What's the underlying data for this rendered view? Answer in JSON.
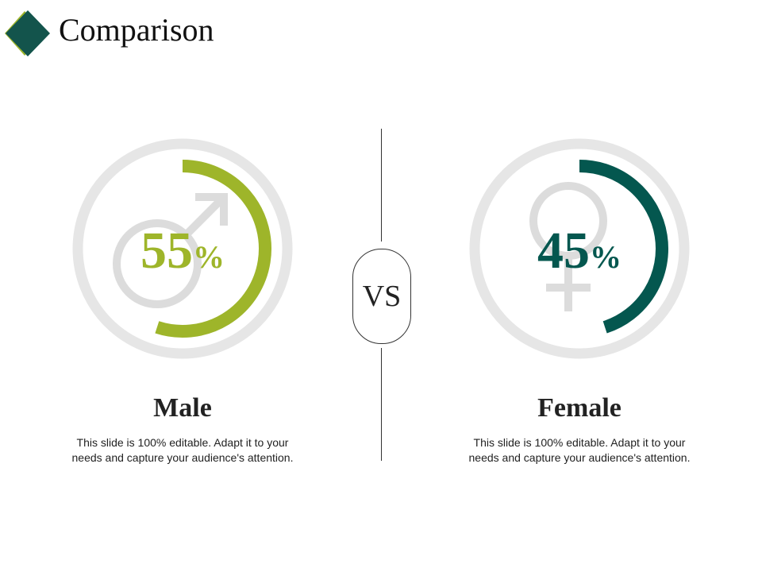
{
  "header": {
    "title": "Comparison",
    "icon": "diamond-icon"
  },
  "colors": {
    "male": "#9eb52a",
    "female": "#04574f",
    "ring": "#e6e6e6",
    "symbol": "#dcdcdc"
  },
  "male": {
    "label": "Male",
    "percent_value": 55,
    "percent_number": "55",
    "percent_symbol": "%",
    "icon": "male-symbol-icon",
    "description": "This slide is 100% editable. Adapt it to your needs and capture your audience's attention."
  },
  "female": {
    "label": "Female",
    "percent_value": 45,
    "percent_number": "45",
    "percent_symbol": "%",
    "icon": "female-symbol-icon",
    "description": "This slide is 100% editable. Adapt it to your needs and capture your audience's attention."
  },
  "versus": {
    "label": "VS"
  }
}
